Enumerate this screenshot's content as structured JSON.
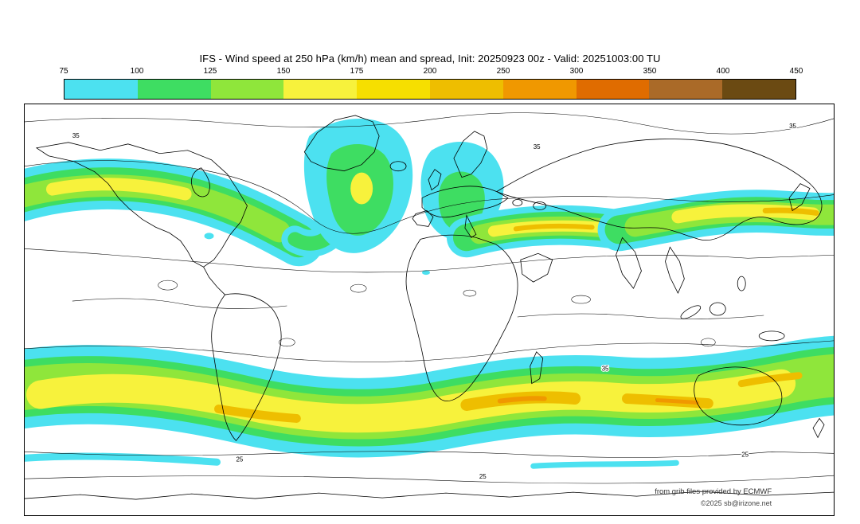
{
  "title": "IFS - Wind speed at 250 hPa (km/h) mean and spread, Init: 20250923 00z - Valid: 20251003:00 TU",
  "colorbar": {
    "ticks": [
      "75",
      "100",
      "125",
      "150",
      "175",
      "200",
      "250",
      "300",
      "350",
      "400",
      "450"
    ],
    "colors": [
      "#4ce1f0",
      "#3edd62",
      "#8fe63b",
      "#f7f23c",
      "#f6df00",
      "#eebe00",
      "#f09800",
      "#e06c00",
      "#aa6a28",
      "#6b4a12"
    ]
  },
  "map": {
    "contour_label_35": "35",
    "contour_label_25": "25"
  },
  "attribution": {
    "line1": "from grib files provided by ECMWF",
    "line2": "©2025 sb@irizone.net"
  },
  "chart_data": {
    "type": "heatmap",
    "title": "IFS - Wind speed at 250 hPa (km/h) mean and spread, Init: 20250923 00z - Valid: 20251003:00 TU",
    "model": "IFS",
    "variable": "Wind speed at 250 hPa",
    "units": "km/h",
    "statistic": "mean and spread",
    "init": "20250923 00z",
    "valid": "20251003:00 TU",
    "projection": "equirectangular world map with coastlines",
    "colorbar_ticks": [
      75,
      100,
      125,
      150,
      175,
      200,
      250,
      300,
      350,
      400,
      450
    ],
    "colorbar_colors": [
      "#4ce1f0",
      "#3edd62",
      "#8fe63b",
      "#f7f23c",
      "#f6df00",
      "#eebe00",
      "#f09800",
      "#e06c00",
      "#aa6a28",
      "#6b4a12"
    ],
    "spread_contour_levels_visible": [
      25,
      35
    ],
    "legend_position": "top",
    "depicted_pattern": [
      "Northern-hemisphere jet: wavy band of 75-200 km/h winds across North America, a large cyan/green lobe with small yellow core over the North Atlantic/Greenland, a cyan lobe over Europe, and a strong band with yellow-gold core from Central Asia across East Asia into the Pacific",
      "Southern-hemisphere jet: continuous circumpolar band 75-250 km/h spanning the full map width near 40-55S, with broad yellow core and gold/orange maxima over the southern Indian Ocean and south of Australia",
      "Thin black spread contours (25 and 35) meander across polar and subtropical regions"
    ]
  }
}
